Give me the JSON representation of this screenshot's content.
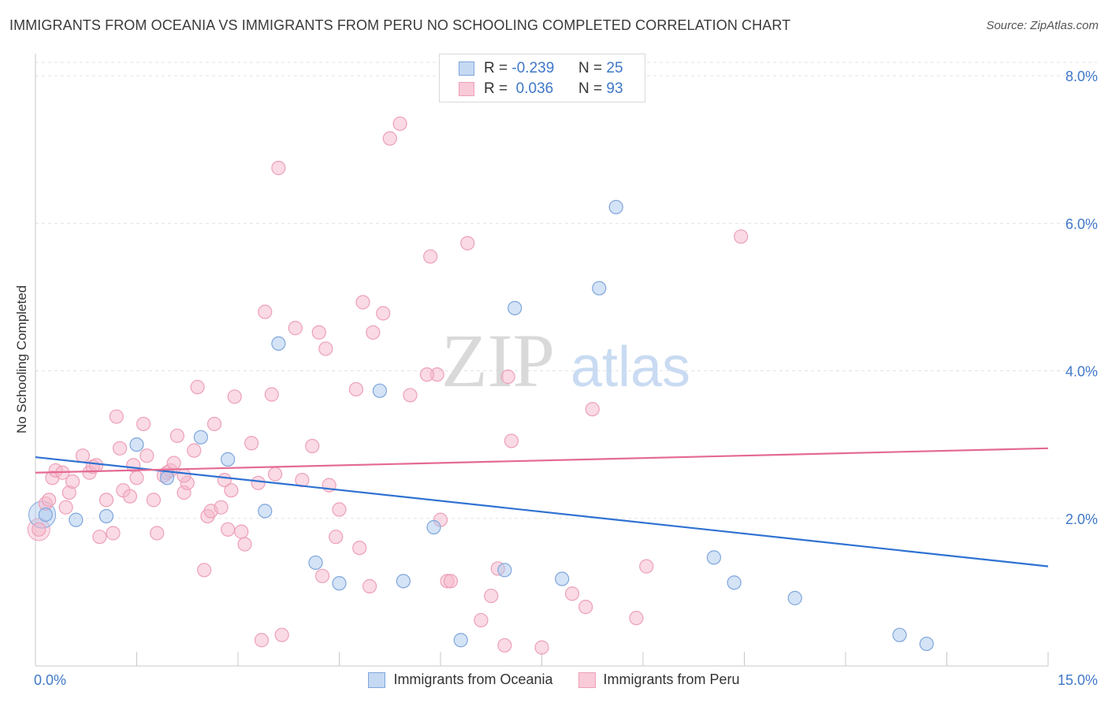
{
  "title": "IMMIGRANTS FROM OCEANIA VS IMMIGRANTS FROM PERU NO SCHOOLING COMPLETED CORRELATION CHART",
  "source": "Source: ZipAtlas.com",
  "watermark": {
    "zip": "ZIP",
    "atlas": "atlas"
  },
  "legend_top": {
    "rows": [
      {
        "r_label": "R =",
        "r_value": "-0.239",
        "n_label": "N =",
        "n_value": "25"
      },
      {
        "r_label": "R =",
        "r_value": "0.036",
        "n_label": "N =",
        "n_value": "93"
      }
    ]
  },
  "legend_bottom": [
    "Immigrants from Oceania",
    "Immigrants from Peru"
  ],
  "chart_data": {
    "type": "scatter",
    "title": "IMMIGRANTS FROM OCEANIA VS IMMIGRANTS FROM PERU NO SCHOOLING COMPLETED CORRELATION CHART",
    "xlabel": "",
    "ylabel": "No Schooling Completed",
    "xlim": [
      0,
      15
    ],
    "ylim": [
      0,
      8.3
    ],
    "x_tick_labels": [
      "0.0%",
      "15.0%"
    ],
    "y_tick_labels": [
      "2.0%",
      "4.0%",
      "6.0%",
      "8.0%"
    ],
    "y_ticks": [
      2,
      4,
      6,
      8
    ],
    "grid": "horizontal dashed",
    "legend": "top-center and bottom",
    "colors": {
      "oceania_fill": "#aac8ee",
      "oceania_stroke": "#7ea6dc",
      "oceania_line": "#2f72d2",
      "peru_fill": "#f6b6c9",
      "peru_stroke": "#eda0b8",
      "peru_line": "#e46a94",
      "axis_text": "#3f78c9"
    },
    "series": [
      {
        "name": "Immigrants from Oceania",
        "trend": {
          "x": [
            0,
            15
          ],
          "y": [
            2.83,
            1.35
          ]
        },
        "points": [
          [
            0.15,
            2.05
          ],
          [
            0.6,
            1.98
          ],
          [
            1.05,
            2.03
          ],
          [
            1.5,
            3.0
          ],
          [
            1.95,
            2.55
          ],
          [
            2.45,
            3.1
          ],
          [
            2.85,
            2.8
          ],
          [
            3.4,
            2.1
          ],
          [
            3.6,
            4.37
          ],
          [
            4.15,
            1.4
          ],
          [
            4.5,
            1.12
          ],
          [
            5.1,
            3.73
          ],
          [
            5.45,
            1.15
          ],
          [
            5.9,
            1.88
          ],
          [
            6.3,
            0.35
          ],
          [
            6.95,
            1.3
          ],
          [
            7.1,
            4.85
          ],
          [
            7.8,
            1.18
          ],
          [
            8.35,
            5.12
          ],
          [
            8.6,
            6.22
          ],
          [
            10.05,
            1.47
          ],
          [
            10.35,
            1.13
          ],
          [
            11.25,
            0.92
          ],
          [
            12.8,
            0.42
          ],
          [
            13.2,
            0.3
          ]
        ]
      },
      {
        "name": "Immigrants from Peru",
        "trend": {
          "x": [
            0,
            15
          ],
          "y": [
            2.62,
            2.95
          ]
        },
        "points": [
          [
            0.05,
            1.85
          ],
          [
            0.15,
            2.2
          ],
          [
            0.2,
            2.25
          ],
          [
            0.25,
            2.55
          ],
          [
            0.3,
            2.65
          ],
          [
            0.4,
            2.62
          ],
          [
            0.45,
            2.15
          ],
          [
            0.5,
            2.35
          ],
          [
            0.55,
            2.5
          ],
          [
            0.7,
            2.85
          ],
          [
            0.8,
            2.62
          ],
          [
            0.85,
            2.7
          ],
          [
            0.9,
            2.72
          ],
          [
            0.95,
            1.75
          ],
          [
            1.05,
            2.25
          ],
          [
            1.15,
            1.8
          ],
          [
            1.2,
            3.38
          ],
          [
            1.25,
            2.95
          ],
          [
            1.3,
            2.38
          ],
          [
            1.4,
            2.3
          ],
          [
            1.45,
            2.72
          ],
          [
            1.5,
            2.55
          ],
          [
            1.6,
            3.28
          ],
          [
            1.65,
            2.85
          ],
          [
            1.75,
            2.25
          ],
          [
            1.8,
            1.8
          ],
          [
            1.9,
            2.58
          ],
          [
            1.95,
            2.62
          ],
          [
            2.0,
            2.65
          ],
          [
            2.05,
            2.75
          ],
          [
            2.1,
            3.12
          ],
          [
            2.2,
            2.35
          ],
          [
            2.25,
            2.48
          ],
          [
            2.35,
            2.92
          ],
          [
            2.4,
            3.78
          ],
          [
            2.5,
            1.3
          ],
          [
            2.55,
            2.03
          ],
          [
            2.6,
            2.1
          ],
          [
            2.65,
            3.28
          ],
          [
            2.75,
            2.15
          ],
          [
            2.8,
            2.52
          ],
          [
            2.85,
            1.85
          ],
          [
            2.9,
            2.38
          ],
          [
            2.95,
            3.65
          ],
          [
            3.05,
            1.82
          ],
          [
            3.1,
            1.65
          ],
          [
            3.2,
            3.02
          ],
          [
            3.3,
            2.48
          ],
          [
            3.35,
            0.35
          ],
          [
            3.4,
            4.8
          ],
          [
            3.5,
            3.68
          ],
          [
            3.55,
            2.6
          ],
          [
            3.6,
            6.75
          ],
          [
            3.65,
            0.42
          ],
          [
            3.85,
            4.58
          ],
          [
            3.95,
            2.52
          ],
          [
            4.1,
            2.98
          ],
          [
            4.2,
            4.52
          ],
          [
            4.25,
            1.22
          ],
          [
            4.3,
            4.3
          ],
          [
            4.35,
            2.45
          ],
          [
            4.45,
            1.75
          ],
          [
            4.5,
            2.12
          ],
          [
            4.75,
            3.75
          ],
          [
            4.8,
            1.6
          ],
          [
            4.85,
            4.93
          ],
          [
            4.95,
            1.08
          ],
          [
            5.0,
            4.52
          ],
          [
            5.15,
            4.78
          ],
          [
            5.25,
            7.15
          ],
          [
            5.4,
            7.35
          ],
          [
            5.55,
            3.67
          ],
          [
            5.85,
            5.55
          ],
          [
            5.95,
            3.95
          ],
          [
            6.1,
            1.15
          ],
          [
            6.15,
            1.15
          ],
          [
            6.4,
            5.73
          ],
          [
            6.6,
            0.62
          ],
          [
            6.75,
            0.95
          ],
          [
            6.85,
            1.32
          ],
          [
            6.95,
            0.28
          ],
          [
            7.0,
            3.92
          ],
          [
            7.05,
            3.05
          ],
          [
            7.5,
            0.25
          ],
          [
            7.95,
            0.98
          ],
          [
            8.15,
            0.8
          ],
          [
            8.25,
            3.48
          ],
          [
            8.9,
            0.65
          ],
          [
            9.05,
            1.35
          ],
          [
            10.45,
            5.82
          ],
          [
            6.0,
            1.98
          ],
          [
            5.8,
            3.95
          ],
          [
            2.2,
            2.58
          ]
        ]
      }
    ]
  }
}
